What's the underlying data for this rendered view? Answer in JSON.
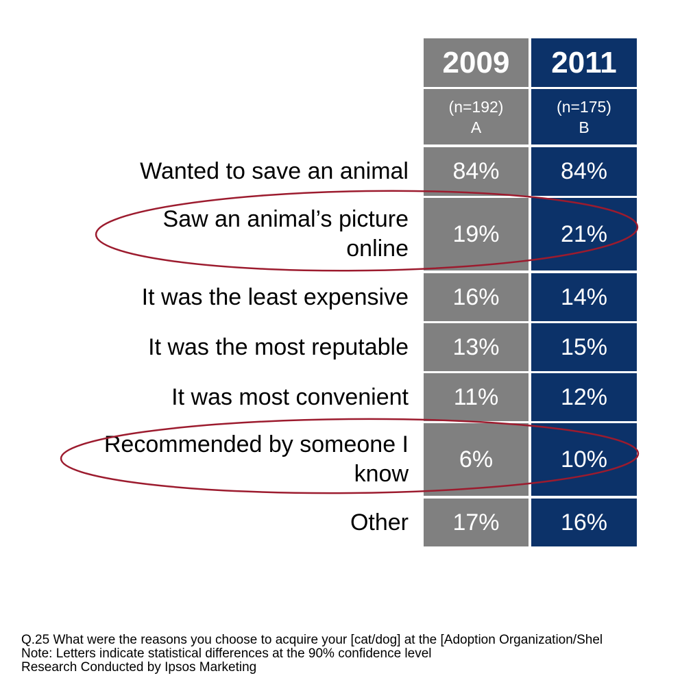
{
  "chart_data": {
    "type": "table",
    "columns": [
      {
        "year": "2009",
        "n": "(n=192)",
        "letter": "A",
        "color": "#808080"
      },
      {
        "year": "2011",
        "n": "(n=175)",
        "letter": "B",
        "color": "#0c3269"
      }
    ],
    "rows": [
      {
        "label": "Wanted to save an animal",
        "values": [
          "84%",
          "84%"
        ]
      },
      {
        "label": "Saw an animal’s picture online",
        "values": [
          "19%",
          "21%"
        ],
        "highlighted": true
      },
      {
        "label": "It was the least expensive",
        "values": [
          "16%",
          "14%"
        ]
      },
      {
        "label": "It was the most reputable",
        "values": [
          "13%",
          "15%"
        ]
      },
      {
        "label": "It was most convenient",
        "values": [
          "11%",
          "12%"
        ]
      },
      {
        "label": "Recommended by someone I know",
        "values": [
          "6%",
          "10%"
        ],
        "highlighted": true
      },
      {
        "label": "Other",
        "values": [
          "17%",
          "16%"
        ]
      }
    ],
    "highlight_color": "#9c1b2e"
  },
  "notes": [
    "Q.25 What were the reasons you choose to acquire your [cat/dog] at the  [Adoption Organization/Shel",
    "Note: Letters indicate statistical differences at the 90% confidence level",
    "Research Conducted by Ipsos Marketing"
  ]
}
